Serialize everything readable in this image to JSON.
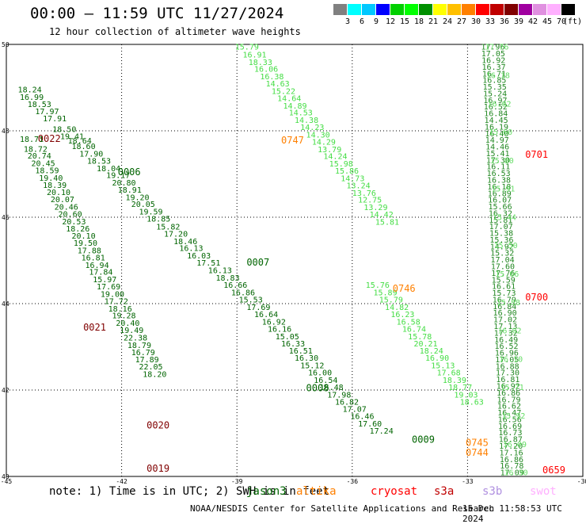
{
  "header": {
    "title": "00:00 – 11:59 UTC 11/27/2024",
    "subtitle": "12 hour collection of altimeter wave heights"
  },
  "scale": {
    "unit": "(ft)",
    "colors": [
      "#808080",
      "#00ffff",
      "#00c8ff",
      "#0000ff",
      "#00d000",
      "#00ff00",
      "#009000",
      "#ffff00",
      "#ffc000",
      "#ff8000",
      "#ff0000",
      "#c00000",
      "#800000",
      "#a000a0",
      "#e090e0",
      "#ffb0ff",
      "#000000"
    ],
    "labels": [
      "3",
      "6",
      "9",
      "12",
      "15",
      "18",
      "21",
      "24",
      "27",
      "30",
      "33",
      "36",
      "39",
      "42",
      "45",
      "70"
    ]
  },
  "chart_data": {
    "type": "scatter",
    "xlim": [
      -45,
      -30
    ],
    "ylim": [
      40,
      50
    ],
    "x_ticks": [
      "-45",
      "-42",
      "-39",
      "-36",
      "-33",
      "-30"
    ],
    "y_ticks": [
      "50",
      "48",
      "46",
      "44",
      "42",
      "40"
    ],
    "grid": true,
    "tracks": [
      {
        "id": "0022",
        "color": "#006400",
        "id_color": "#800000",
        "id_x": -44.18,
        "id_y": 47.82,
        "points": [
          [
            -44.7,
            48.96,
            "18.24"
          ],
          [
            -44.65,
            48.79,
            "16.99"
          ],
          [
            -44.45,
            48.62,
            "18.53"
          ],
          [
            -44.25,
            48.46,
            "17.97"
          ],
          [
            -44.05,
            48.29,
            "17.91"
          ],
          [
            -43.8,
            48.05,
            "18.50"
          ],
          [
            -43.6,
            47.88,
            "19.41"
          ],
          [
            -43.4,
            47.78,
            "18.64"
          ],
          [
            -43.3,
            47.65,
            "18.60"
          ],
          [
            -43.1,
            47.48,
            "17.90"
          ],
          [
            -42.9,
            47.31,
            "18.53"
          ],
          [
            -42.65,
            47.14,
            "18.04"
          ],
          [
            -42.4,
            46.98,
            "19.17"
          ],
          [
            -42.25,
            46.81,
            "20.80"
          ],
          [
            -42.1,
            46.64,
            "18.91"
          ],
          [
            -41.9,
            46.47,
            "19.20"
          ],
          [
            -41.75,
            46.31,
            "20.05"
          ],
          [
            -41.55,
            46.14,
            "19.59"
          ],
          [
            -41.35,
            45.97,
            "18.85"
          ],
          [
            -41.1,
            45.79,
            "15.82"
          ],
          [
            -40.9,
            45.62,
            "17.20"
          ],
          [
            -40.65,
            45.45,
            "18.46"
          ],
          [
            -40.5,
            45.29,
            "16.13"
          ],
          [
            -40.3,
            45.12,
            "16.03"
          ],
          [
            -40.05,
            44.95,
            "17.51"
          ]
        ]
      },
      {
        "id": "0006",
        "color": "#006400",
        "id_color": "#006400",
        "id_x": -42.1,
        "id_y": 47.05,
        "points": []
      },
      {
        "id": "0007",
        "color": "#006400",
        "id_color": "#006400",
        "id_x": -38.75,
        "id_y": 44.95,
        "points": [
          [
            -39.75,
            44.78,
            "16.13"
          ],
          [
            -39.55,
            44.61,
            "18.83"
          ],
          [
            -39.35,
            44.44,
            "16.66"
          ],
          [
            -39.15,
            44.27,
            "16.86"
          ],
          [
            -38.95,
            44.1,
            "15.53"
          ],
          [
            -38.75,
            43.93,
            "17.69"
          ],
          [
            -38.55,
            43.76,
            "16.64"
          ],
          [
            -38.35,
            43.59,
            "16.92"
          ],
          [
            -38.2,
            43.42,
            "16.16"
          ],
          [
            -38.0,
            43.25,
            "15.05"
          ],
          [
            -37.85,
            43.08,
            "16.33"
          ],
          [
            -37.65,
            42.92,
            "16.51"
          ],
          [
            -37.5,
            42.75,
            "16.30"
          ],
          [
            -37.35,
            42.58,
            "15.12"
          ],
          [
            -37.15,
            42.41,
            "16.00"
          ],
          [
            -37.0,
            42.24,
            "16.54"
          ],
          [
            -36.85,
            42.07,
            "16.48"
          ],
          [
            -36.65,
            41.9,
            "17.98"
          ],
          [
            -36.45,
            41.73,
            "16.82"
          ],
          [
            -36.25,
            41.57,
            "17.07"
          ],
          [
            -36.05,
            41.4,
            "16.46"
          ],
          [
            -35.85,
            41.23,
            "17.60"
          ],
          [
            -35.55,
            41.06,
            "17.24"
          ]
        ]
      },
      {
        "id": "0008",
        "color": "#006400",
        "id_color": "#006400",
        "id_x": -37.2,
        "id_y": 42.05,
        "points": []
      },
      {
        "id": "0009",
        "color": "#006400",
        "id_color": "#006400",
        "id_x": -34.45,
        "id_y": 40.85,
        "points": []
      },
      {
        "id": "0021",
        "color": "#006400",
        "id_color": "#800000",
        "id_x": -43.0,
        "id_y": 43.45,
        "points": [
          [
            -44.65,
            47.82,
            "18.71"
          ],
          [
            -44.55,
            47.59,
            "18.72"
          ],
          [
            -44.45,
            47.43,
            "20.74"
          ],
          [
            -44.35,
            47.26,
            "20.45"
          ],
          [
            -44.25,
            47.09,
            "18.59"
          ],
          [
            -44.15,
            46.92,
            "19.40"
          ],
          [
            -44.05,
            46.75,
            "18.39"
          ],
          [
            -43.95,
            46.59,
            "20.10"
          ],
          [
            -43.85,
            46.42,
            "20.07"
          ],
          [
            -43.75,
            46.25,
            "20.46"
          ],
          [
            -43.65,
            46.08,
            "20.60"
          ],
          [
            -43.55,
            45.91,
            "20.53"
          ],
          [
            -43.45,
            45.74,
            "18.26"
          ],
          [
            -43.3,
            45.58,
            "20.10"
          ],
          [
            -43.25,
            45.41,
            "19.50"
          ],
          [
            -43.15,
            45.24,
            "17.88"
          ],
          [
            -43.05,
            45.07,
            "16.81"
          ],
          [
            -42.95,
            44.9,
            "16.94"
          ],
          [
            -42.85,
            44.74,
            "17.84"
          ],
          [
            -42.75,
            44.57,
            "15.97"
          ],
          [
            -42.65,
            44.4,
            "17.69"
          ],
          [
            -42.55,
            44.23,
            "19.00"
          ],
          [
            -42.45,
            44.06,
            "17.72"
          ],
          [
            -42.35,
            43.89,
            "18.16"
          ],
          [
            -42.25,
            43.73,
            "19.28"
          ],
          [
            -42.15,
            43.56,
            "20.40"
          ],
          [
            -42.05,
            43.39,
            "19.49"
          ],
          [
            -41.95,
            43.22,
            "22.38"
          ],
          [
            -41.85,
            43.05,
            "18.79"
          ],
          [
            -41.75,
            42.88,
            "16.79"
          ],
          [
            -41.65,
            42.72,
            "17.89"
          ],
          [
            -41.55,
            42.55,
            "22.05"
          ],
          [
            -41.45,
            42.38,
            "18.20"
          ]
        ]
      },
      {
        "id": "0020",
        "color": "#006400",
        "id_color": "#800000",
        "id_x": -41.35,
        "id_y": 41.18,
        "points": []
      },
      {
        "id": "0019",
        "color": "#006400",
        "id_color": "#800000",
        "id_x": -41.35,
        "id_y": 40.18,
        "points": []
      },
      {
        "id": "0747",
        "color": "#44dd44",
        "id_color": "#ff8000",
        "id_x": -37.85,
        "id_y": 47.78,
        "points": [
          [
            -39.05,
            49.95,
            "15.79"
          ],
          [
            -38.85,
            49.77,
            "16.91"
          ],
          [
            -38.7,
            49.6,
            "18.33"
          ],
          [
            -38.55,
            49.44,
            "16.06"
          ],
          [
            -38.4,
            49.27,
            "16.38"
          ],
          [
            -38.25,
            49.1,
            "14.63"
          ],
          [
            -38.1,
            48.93,
            "15.22"
          ],
          [
            -37.95,
            48.76,
            "14.64"
          ],
          [
            -37.8,
            48.59,
            "14.89"
          ],
          [
            -37.65,
            48.43,
            "14.53"
          ],
          [
            -37.5,
            48.26,
            "14.38"
          ],
          [
            -37.35,
            48.09,
            "14.23"
          ],
          [
            -37.2,
            47.92,
            "14.30"
          ],
          [
            -37.05,
            47.75,
            "14.29"
          ],
          [
            -36.9,
            47.58,
            "13.79"
          ],
          [
            -36.75,
            47.42,
            "14.24"
          ],
          [
            -36.6,
            47.25,
            "15.98"
          ],
          [
            -36.45,
            47.08,
            "15.86"
          ],
          [
            -36.3,
            46.91,
            "14.73"
          ],
          [
            -36.15,
            46.74,
            "13.24"
          ],
          [
            -36.0,
            46.57,
            "13.76"
          ],
          [
            -35.85,
            46.41,
            "12.75"
          ],
          [
            -35.7,
            46.24,
            "13.29"
          ],
          [
            -35.55,
            46.07,
            "14.42"
          ],
          [
            -35.4,
            45.9,
            "15.81"
          ]
        ]
      },
      {
        "id": "0746",
        "color": "#44dd44",
        "id_color": "#ff8000",
        "id_x": -34.95,
        "id_y": 44.35,
        "points": [
          [
            -35.65,
            44.44,
            "15.76"
          ],
          [
            -35.45,
            44.27,
            "15.89"
          ],
          [
            -35.3,
            44.1,
            "15.79"
          ],
          [
            -35.15,
            43.93,
            "14.82"
          ],
          [
            -35.0,
            43.76,
            "16.23"
          ],
          [
            -34.85,
            43.59,
            "16.58"
          ],
          [
            -34.7,
            43.42,
            "16.74"
          ],
          [
            -34.55,
            43.25,
            "15.78"
          ],
          [
            -34.4,
            43.08,
            "20.21"
          ],
          [
            -34.25,
            42.92,
            "18.24"
          ],
          [
            -34.1,
            42.75,
            "16.90"
          ],
          [
            -33.95,
            42.58,
            "15.13"
          ],
          [
            -33.8,
            42.41,
            "17.68"
          ],
          [
            -33.65,
            42.24,
            "18.39"
          ],
          [
            -33.5,
            42.07,
            "18.77"
          ],
          [
            -33.35,
            41.9,
            "19.03"
          ],
          [
            -33.2,
            41.73,
            "18.63"
          ]
        ]
      },
      {
        "id": "0745",
        "color": "#44dd44",
        "id_color": "#ff8000",
        "id_x": -33.05,
        "id_y": 40.78,
        "points": []
      },
      {
        "id": "0744",
        "color": "#44dd44",
        "id_color": "#ff8000",
        "id_x": -33.05,
        "id_y": 40.55,
        "points": []
      },
      {
        "id": "0701",
        "color": "#22aa22",
        "id_color": "#ff0000",
        "id_x": -31.5,
        "id_y": 47.45,
        "points": []
      },
      {
        "id": "0700",
        "color": "#22aa22",
        "id_color": "#ff0000",
        "id_x": -31.5,
        "id_y": 44.15,
        "points": []
      },
      {
        "id": "0659",
        "color": "#22aa22",
        "id_color": "#ff0000",
        "id_x": -31.05,
        "id_y": 40.15,
        "points": []
      }
    ],
    "dense_tracks": [
      {
        "color": "#228822",
        "x_start": -32.65,
        "x_end": -32.15,
        "labels": [
          "17.96",
          "17.05",
          "16.92",
          "16.37",
          "16.71",
          "16.85",
          "15.35",
          "15.24",
          "16.97",
          "16.52",
          "16.84",
          "14.45",
          "16.19",
          "16.40",
          "14.97",
          "14.46",
          "15.41",
          "17.30",
          "16.11",
          "16.53",
          "16.38",
          "16.18",
          "16.89",
          "16.07",
          "15.66",
          "16.32",
          "15.81",
          "17.07",
          "15.38",
          "15.36",
          "14.92",
          "15.32",
          "17.04",
          "17.60",
          "17.76",
          "15.59",
          "16.61",
          "15.73",
          "16.79",
          "16.84",
          "16.90",
          "17.02",
          "17.13",
          "17.32",
          "16.49",
          "16.52",
          "16.96",
          "17.05",
          "16.88",
          "17.30",
          "16.81",
          "16.92",
          "16.86",
          "16.79",
          "16.62",
          "16.47",
          "16.56",
          "16.69",
          "16.73",
          "16.87",
          "17.20",
          "17.16",
          "16.86",
          "16.78",
          "17.09"
        ]
      },
      {
        "color": "#66dd66",
        "x_start": -32.55,
        "x_end": -32.05,
        "labels": [
          "17.76",
          "16.18",
          "16.02",
          "15.60",
          "15.80",
          "15.91",
          "15.44",
          "15.50",
          "15.66",
          "15.88",
          "16.02",
          "16.10",
          "15.71",
          "15.92",
          "16.09",
          "16.30"
        ]
      }
    ],
    "cryosat_track": {
      "color": "#ff0000"
    }
  },
  "footer": {
    "note": "note: 1) Time is in UTC; 2) SWH is in feet",
    "satellites": [
      {
        "name": "jason3",
        "color": "#006400"
      },
      {
        "name": "altika",
        "color": "#ff8000"
      },
      {
        "name": "cryosat",
        "color": "#ff0000"
      },
      {
        "name": "s3a",
        "color": "#c00000"
      },
      {
        "name": "s3b",
        "color": "#b090e0"
      },
      {
        "name": "swot",
        "color": "#ffb0ff"
      }
    ],
    "credit": "NOAA/NESDIS Center for Satellite Applications and Research",
    "timestamp": "15 Dec 11:58:53 UTC 2024"
  }
}
